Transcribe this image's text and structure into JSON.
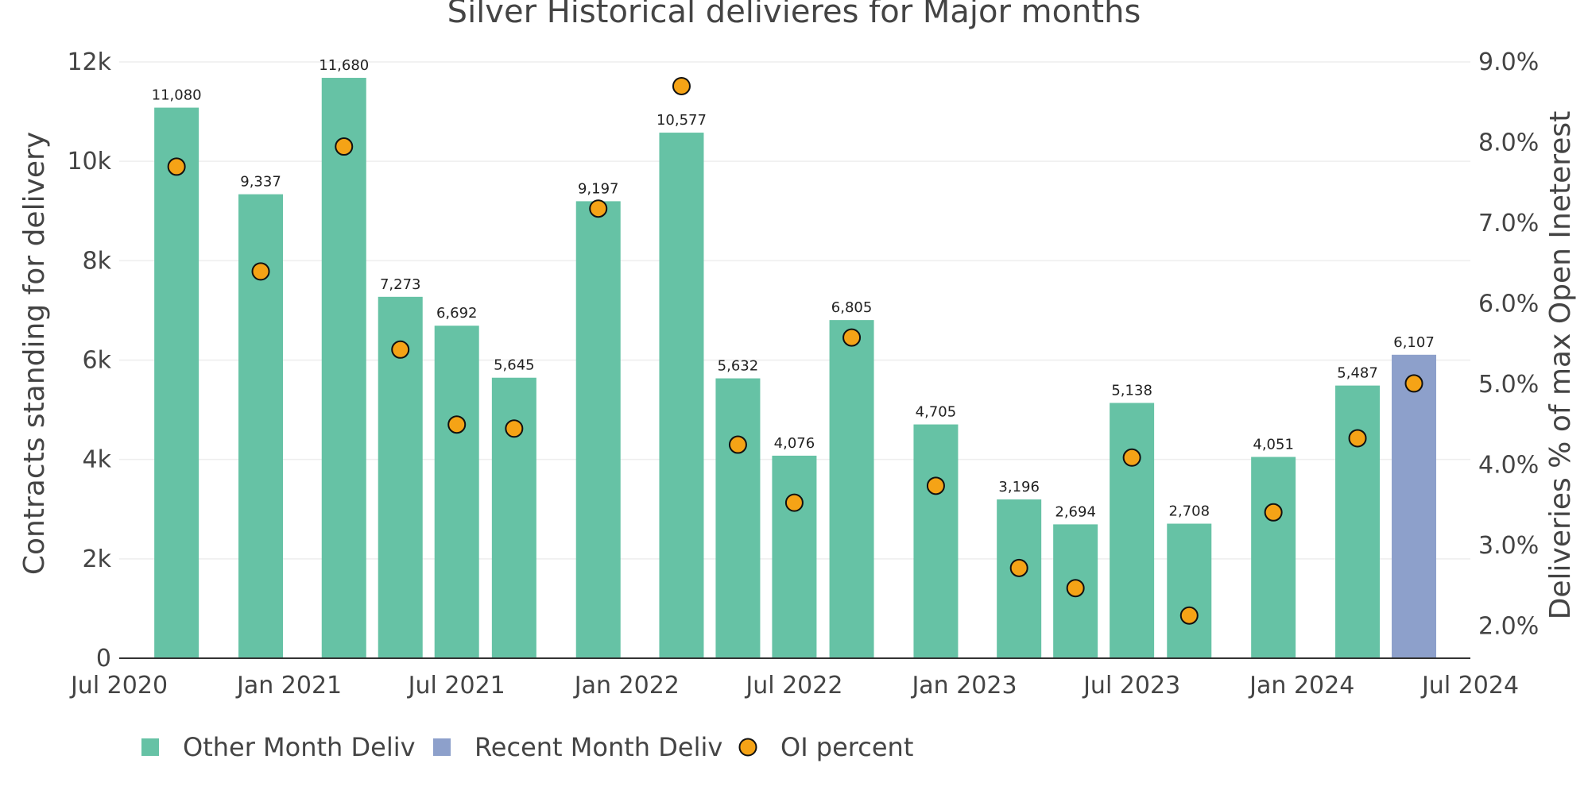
{
  "chart_data": {
    "type": "bar",
    "title": "Silver Historical delivieres for Major months",
    "ylabel": "Contracts standing for delivery",
    "y2label": "Deliveries % of max Open Ineterest",
    "ylim": [
      0,
      12000
    ],
    "y2lim": [
      1.6,
      9.0
    ],
    "yticks": [
      0,
      2000,
      4000,
      6000,
      8000,
      10000,
      12000
    ],
    "ytick_labels": [
      "0",
      "2k",
      "4k",
      "6k",
      "8k",
      "10k",
      "12k"
    ],
    "y2ticks": [
      2.0,
      3.0,
      4.0,
      5.0,
      6.0,
      7.0,
      8.0,
      9.0
    ],
    "y2tick_labels": [
      "2.0%",
      "3.0%",
      "4.0%",
      "5.0%",
      "6.0%",
      "7.0%",
      "8.0%",
      "9.0%"
    ],
    "xlim": [
      "2020-07-01",
      "2024-07-01"
    ],
    "xticks": [
      "2020-07-01",
      "2021-01-01",
      "2021-07-01",
      "2022-01-01",
      "2022-07-01",
      "2023-01-01",
      "2023-07-01",
      "2024-01-01",
      "2024-07-01"
    ],
    "xtick_labels": [
      "Jul 2020",
      "Jan 2021",
      "Jul 2021",
      "Jan 2022",
      "Jul 2022",
      "Jan 2023",
      "Jul 2023",
      "Jan 2024",
      "Jul 2024"
    ],
    "grid": true,
    "legend_position": "bottom-left",
    "colors": {
      "other": "#66c2a5",
      "recent": "#8da0cb",
      "oi": "#f5a316",
      "oi_edge": "#111111",
      "grid": "#eeeeee",
      "axis": "#333333"
    },
    "legend": [
      {
        "label": "Other Month Deliv",
        "kind": "square",
        "color": "#66c2a5"
      },
      {
        "label": "Recent Month Deliv",
        "kind": "square",
        "color": "#8da0cb"
      },
      {
        "label": "OI percent",
        "kind": "circle",
        "color": "#f5a316"
      }
    ],
    "series": [
      {
        "name": "Other Month Deliv",
        "type": "bar",
        "x": [
          "2020-09-01",
          "2020-12-01",
          "2021-03-01",
          "2021-05-01",
          "2021-07-01",
          "2021-09-01",
          "2021-12-01",
          "2022-03-01",
          "2022-05-01",
          "2022-07-01",
          "2022-09-01",
          "2022-12-01",
          "2023-03-01",
          "2023-05-01",
          "2023-07-01",
          "2023-09-01",
          "2023-12-01",
          "2024-03-01"
        ],
        "values": [
          11080,
          9337,
          11680,
          7273,
          6692,
          5645,
          9197,
          10577,
          5632,
          4076,
          6805,
          4705,
          3196,
          2694,
          5138,
          2708,
          4051,
          5487
        ],
        "labels": [
          "11,080",
          "9,337",
          "11,680",
          "7,273",
          "6,692",
          "5,645",
          "9,197",
          "10,577",
          "5,632",
          "4,076",
          "6,805",
          "4,705",
          "3,196",
          "2,694",
          "5,138",
          "2,708",
          "4,051",
          "5,487"
        ]
      },
      {
        "name": "Recent Month Deliv",
        "type": "bar",
        "x": [
          "2024-05-01"
        ],
        "values": [
          6107
        ],
        "labels": [
          "6,107"
        ]
      },
      {
        "name": "OI percent",
        "type": "scatter",
        "axis": "y2",
        "x": [
          "2020-09-01",
          "2020-12-01",
          "2021-03-01",
          "2021-05-01",
          "2021-07-01",
          "2021-09-01",
          "2021-12-01",
          "2022-03-01",
          "2022-05-01",
          "2022-07-01",
          "2022-09-01",
          "2022-12-01",
          "2023-03-01",
          "2023-05-01",
          "2023-07-01",
          "2023-09-01",
          "2023-12-01",
          "2024-03-01",
          "2024-05-01"
        ],
        "values": [
          7.7,
          6.4,
          7.95,
          5.43,
          4.5,
          4.45,
          7.18,
          8.7,
          4.25,
          3.53,
          5.58,
          3.74,
          2.72,
          2.47,
          4.09,
          2.13,
          3.41,
          4.33,
          5.01
        ]
      }
    ]
  }
}
